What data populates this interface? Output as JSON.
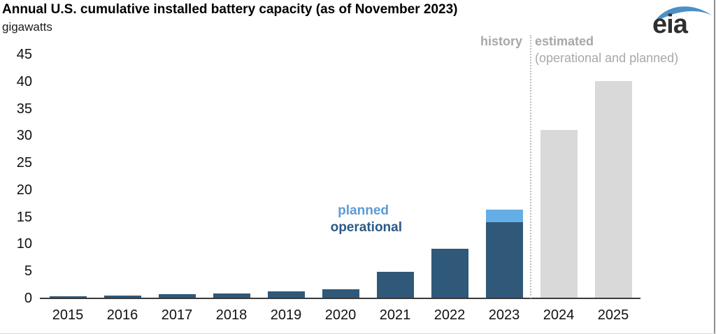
{
  "header": {
    "title": "Annual U.S. cumulative installed battery capacity (as of November 2023)",
    "subtitle": "gigawatts"
  },
  "logo": {
    "text": "eia"
  },
  "annotations": {
    "history": "history",
    "estimated": "estimated",
    "estimated_note": "(operational and planned)",
    "planned": "planned",
    "operational": "operational"
  },
  "colors": {
    "operational_bar": "#305878",
    "planned_bar": "#64aee6",
    "estimated_bar": "#d9d9d9",
    "planned_text": "#5b9bd5",
    "operational_text": "#2d5985",
    "gray_text": "#a8a8a8",
    "axis_line": "#3a3a3a",
    "logo_swoosh": "#4a90c8"
  },
  "chart_data": {
    "type": "bar",
    "stacked": true,
    "title": "Annual U.S. cumulative installed battery capacity (as of November 2023)",
    "ylabel": "gigawatts",
    "ylim": [
      0,
      45
    ],
    "yticks": [
      0,
      5,
      10,
      15,
      20,
      25,
      30,
      35,
      40,
      45
    ],
    "grid": false,
    "legend_position": "inline-annotations",
    "categories": [
      "2015",
      "2016",
      "2017",
      "2018",
      "2019",
      "2020",
      "2021",
      "2022",
      "2023",
      "2024",
      "2025"
    ],
    "series": [
      {
        "name": "operational",
        "color_key": "operational_bar",
        "values": [
          0.2,
          0.4,
          0.6,
          0.8,
          1.1,
          1.5,
          4.8,
          9.0,
          13.9,
          null,
          null
        ]
      },
      {
        "name": "planned",
        "color_key": "planned_bar",
        "values": [
          null,
          null,
          null,
          null,
          null,
          null,
          null,
          null,
          2.3,
          null,
          null
        ]
      },
      {
        "name": "estimated (operational and planned)",
        "color_key": "estimated_bar",
        "values": [
          null,
          null,
          null,
          null,
          null,
          null,
          null,
          null,
          null,
          30.9,
          40.0
        ]
      }
    ],
    "divider": {
      "between": [
        "2023",
        "2024"
      ],
      "left_label": "history",
      "right_label": "estimated (operational and planned)"
    }
  }
}
